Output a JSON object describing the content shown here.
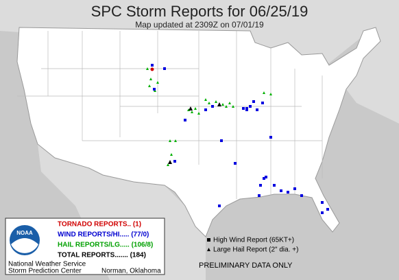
{
  "header": {
    "title": "SPC Storm Reports for 06/25/19",
    "subtitle": "Map updated at 2309Z on 07/01/19"
  },
  "legend": {
    "logo": "NOAA",
    "tornado": "TORNADO REPORTS.. (1)",
    "wind": "WIND REPORTS/HI..... (77/0)",
    "hail": "HAIL REPORTS/LG..... (106/8)",
    "total": "TOTAL REPORTS....... (184)",
    "agency": "National Weather Service",
    "center": "Storm Prediction Center",
    "city": "Norman, Oklahoma"
  },
  "key": {
    "high_wind": "High Wind Report (65KT+)",
    "large_hail": "Large Hail Report (2\" dia. +)"
  },
  "notice": "PRELIMINARY DATA ONLY"
}
